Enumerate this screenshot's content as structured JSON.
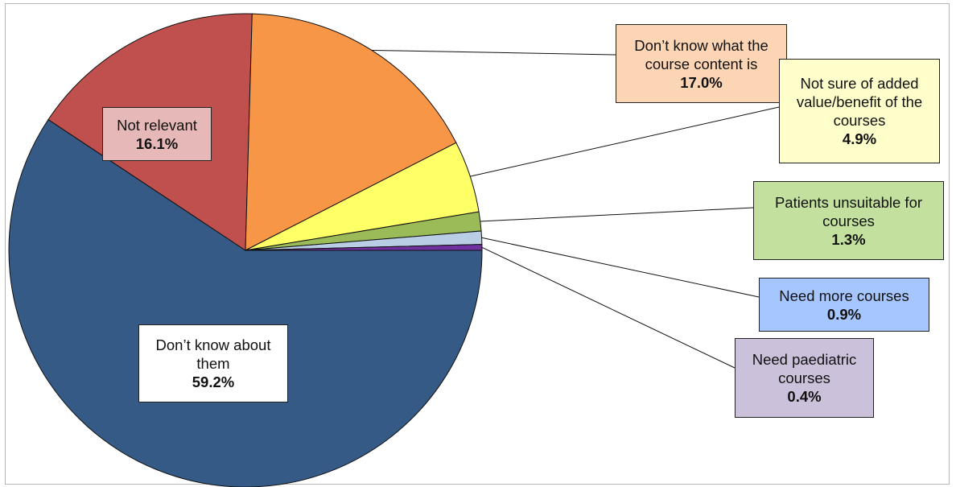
{
  "chart_data": {
    "type": "pie",
    "title": "",
    "slices": [
      {
        "label": "Don’t know about them",
        "value": 59.2,
        "value_label": "59.2%",
        "color": "#355A86"
      },
      {
        "label": "Not relevant",
        "value": 16.1,
        "value_label": "16.1%",
        "color": "#C0504D"
      },
      {
        "label": "Don’t know what the course content is",
        "value": 17.0,
        "value_label": "17.0%",
        "color": "#F79646"
      },
      {
        "label": "Not sure of added value/benefit of the courses",
        "value": 4.9,
        "value_label": "4.9%",
        "color": "#FFFF66"
      },
      {
        "label": "Patients unsuitable for courses",
        "value": 1.3,
        "value_label": "1.3%",
        "color": "#9BBB59"
      },
      {
        "label": "Need more courses",
        "value": 0.9,
        "value_label": "0.9%",
        "color": "#B9CDE5"
      },
      {
        "label": "Need paediatric courses",
        "value": 0.4,
        "value_label": "0.4%",
        "color": "#7030A0"
      }
    ],
    "label_colors": {
      "Don’t know about them": "#FFFFFF",
      "Not relevant": "#E6B9B8",
      "Don’t know what the course content is": "#FCD5B5",
      "Not sure of added value/benefit of the courses": "#FFFFCC",
      "Patients unsuitable for courses": "#C3E09E",
      "Need more courses": "#A6C6FF",
      "Need paediatric courses": "#CCC1DA"
    },
    "label_lines": {
      "Don’t know about them": [
        "Don’t know about",
        "them"
      ],
      "Not relevant": [
        "Not relevant"
      ],
      "Don’t know what the course content is": [
        "Don’t know what the",
        "course content is"
      ],
      "Not sure of added value/benefit of the courses": [
        "Not sure of added",
        "value/benefit of the",
        "courses"
      ],
      "Patients unsuitable for courses": [
        "Patients unsuitable for",
        "courses"
      ],
      "Need more courses": [
        "Need more courses"
      ],
      "Need paediatric courses": [
        "Need paediatric",
        "courses"
      ]
    }
  }
}
